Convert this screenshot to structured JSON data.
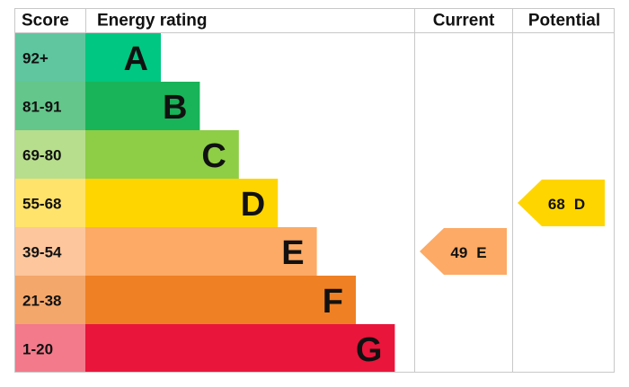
{
  "header": {
    "score": "Score",
    "rating": "Energy rating",
    "current": "Current",
    "potential": "Potential"
  },
  "bands": [
    {
      "range": "92+",
      "letter": "A",
      "color": "#00c781",
      "light": "#5fc6a0"
    },
    {
      "range": "81-91",
      "letter": "B",
      "color": "#19b459",
      "light": "#64c68a"
    },
    {
      "range": "69-80",
      "letter": "C",
      "color": "#8dce46",
      "light": "#b7de8c"
    },
    {
      "range": "55-68",
      "letter": "D",
      "color": "#ffd500",
      "light": "#ffe36b"
    },
    {
      "range": "39-54",
      "letter": "E",
      "color": "#fcaa65",
      "light": "#fdc69c"
    },
    {
      "range": "21-38",
      "letter": "F",
      "color": "#ef8023",
      "light": "#f4a76a"
    },
    {
      "range": "1-20",
      "letter": "G",
      "color": "#e9153b",
      "light": "#f27a8b"
    }
  ],
  "current": {
    "score": 49,
    "band": "E"
  },
  "potential": {
    "score": 68,
    "band": "D"
  }
}
